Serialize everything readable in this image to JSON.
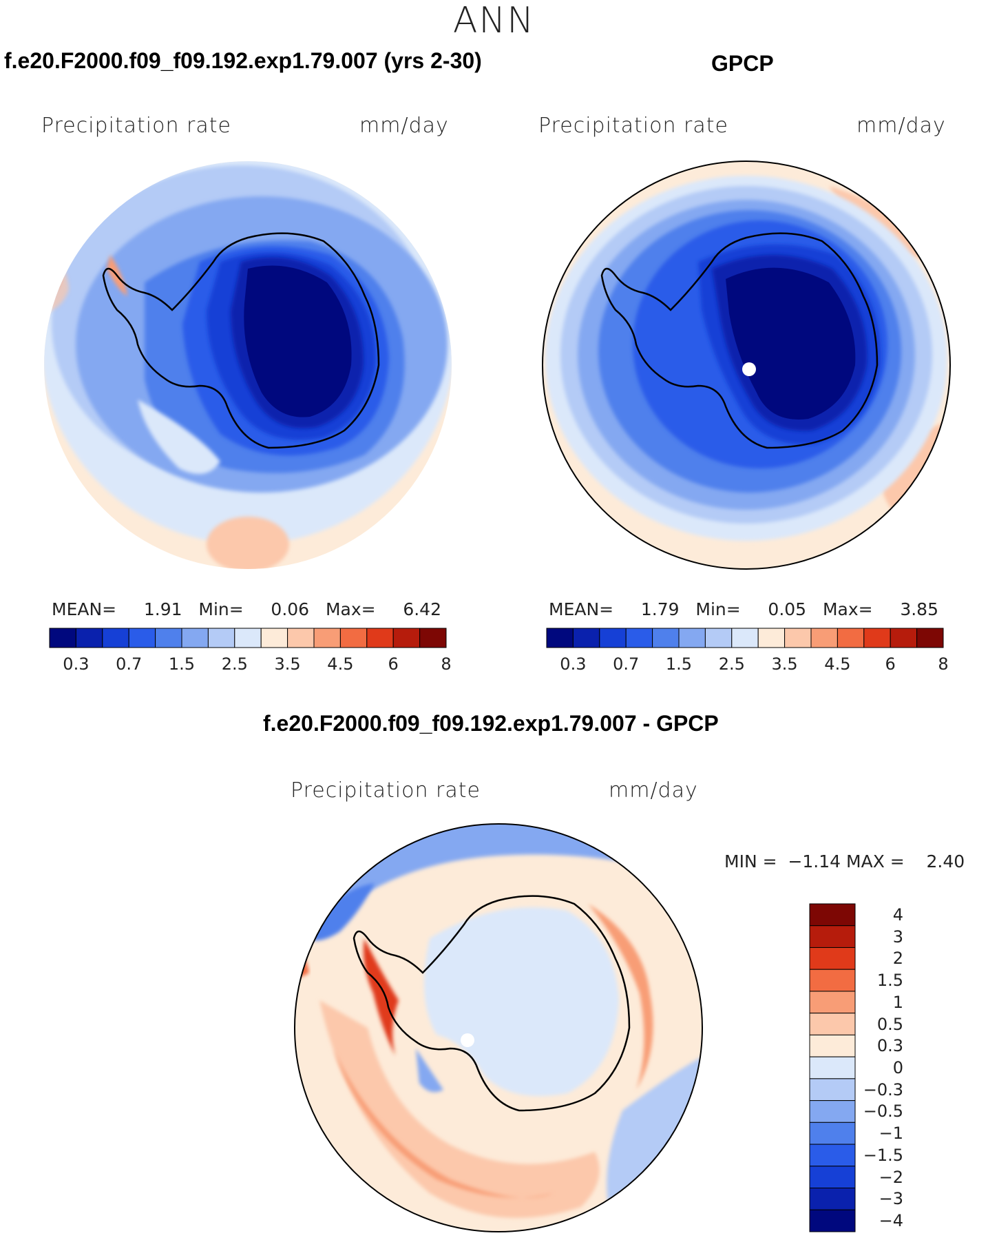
{
  "header": {
    "title": "ANN"
  },
  "panels": [
    {
      "id": "model",
      "case_title": "f.e20.F2000.f09_f09.192.exp1.79.007 (yrs 2-30)",
      "variable_label": "Precipitation rate",
      "units": "mm/day",
      "stats": {
        "mean_label": "MEAN=",
        "mean": "1.91",
        "min_label": "Min=",
        "min": "0.06",
        "max_label": "Max=",
        "max": "6.42"
      }
    },
    {
      "id": "obs",
      "case_title": "GPCP",
      "variable_label": "Precipitation rate",
      "units": "mm/day",
      "stats": {
        "mean_label": "MEAN=",
        "mean": "1.79",
        "min_label": "Min=",
        "min": "0.05",
        "max_label": "Max=",
        "max": "3.85"
      }
    },
    {
      "id": "diff",
      "case_title": "f.e20.F2000.f09_f09.192.exp1.79.007 - GPCP",
      "variable_label": "Precipitation rate",
      "units": "mm/day",
      "stats": {
        "min_label": "MIN =",
        "min": "−1.14",
        "max_label": "MAX =",
        "max": "2.40"
      }
    }
  ],
  "colorbar_abs": {
    "colors": [
      "#00087e",
      "#0a21ad",
      "#1640d6",
      "#2a5ce9",
      "#4f80ec",
      "#84a8f1",
      "#b4cbf6",
      "#dbe8fa",
      "#fdebd9",
      "#fcc8ab",
      "#f89d76",
      "#f26c42",
      "#e03a1a",
      "#b61c0c",
      "#7d0704"
    ],
    "tick_labels": [
      "0.3",
      "0.7",
      "1.5",
      "2.5",
      "3.5",
      "4.5",
      "6",
      "8"
    ]
  },
  "colorbar_diff": {
    "colors_top_to_bottom": [
      "#7d0704",
      "#b61c0c",
      "#e03a1a",
      "#f26c42",
      "#f89d76",
      "#fcc8ab",
      "#fdebd9",
      "#dbe8fa",
      "#b4cbf6",
      "#84a8f1",
      "#4f80ec",
      "#2a5ce9",
      "#1640d6",
      "#0a21ad",
      "#00087e"
    ],
    "tick_labels": [
      "4",
      "3",
      "2",
      "1.5",
      "1",
      "0.5",
      "0.3",
      "0",
      "−0.3",
      "−0.5",
      "−1",
      "−1.5",
      "−2",
      "−3",
      "−4"
    ]
  }
}
